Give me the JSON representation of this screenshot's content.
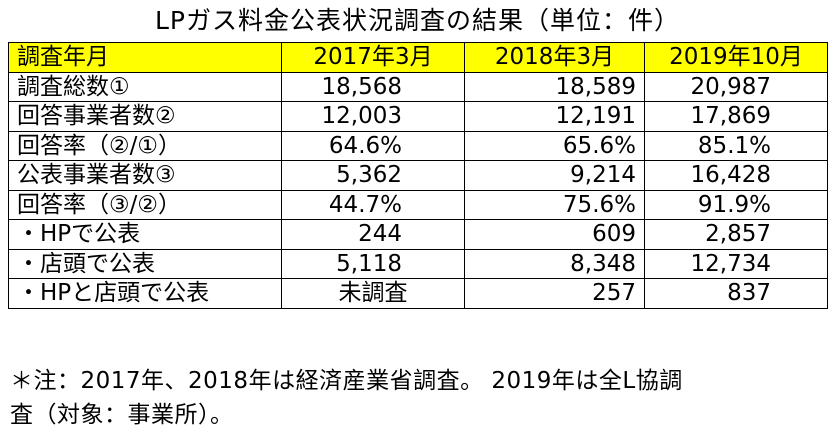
{
  "title": "LPガス料金公表状況調査の結果（単位：件）",
  "table": {
    "headers": [
      "調査年月",
      "2017年3月",
      "2018年3月",
      "2019年10月"
    ],
    "rows": [
      [
        "調査総数①",
        "18,568",
        "18,589",
        "20,987"
      ],
      [
        "回答事業者数②",
        "12,003",
        "12,191",
        "17,869"
      ],
      [
        "回答率（②/①）",
        "64.6%",
        "65.6%",
        "85.1%"
      ],
      [
        "公表事業者数③",
        "5,362",
        "9,214",
        "16,428"
      ],
      [
        "回答率（③/②）",
        "44.7%",
        "75.6%",
        "91.9%"
      ],
      [
        "・HPで公表",
        "244",
        "609",
        "2,857"
      ],
      [
        "・店頭で公表",
        "5,118",
        "8,348",
        "12,734"
      ],
      [
        "・HPと店頭で公表",
        "未調査",
        "257",
        "837"
      ]
    ]
  },
  "note_line1": "＊注：2017年、2018年は経済産業省調査。 2019年は全L協調",
  "note_line2": "査（対象：事業所）。",
  "colors": {
    "header_bg": "#ffff00",
    "border": "#000000"
  }
}
